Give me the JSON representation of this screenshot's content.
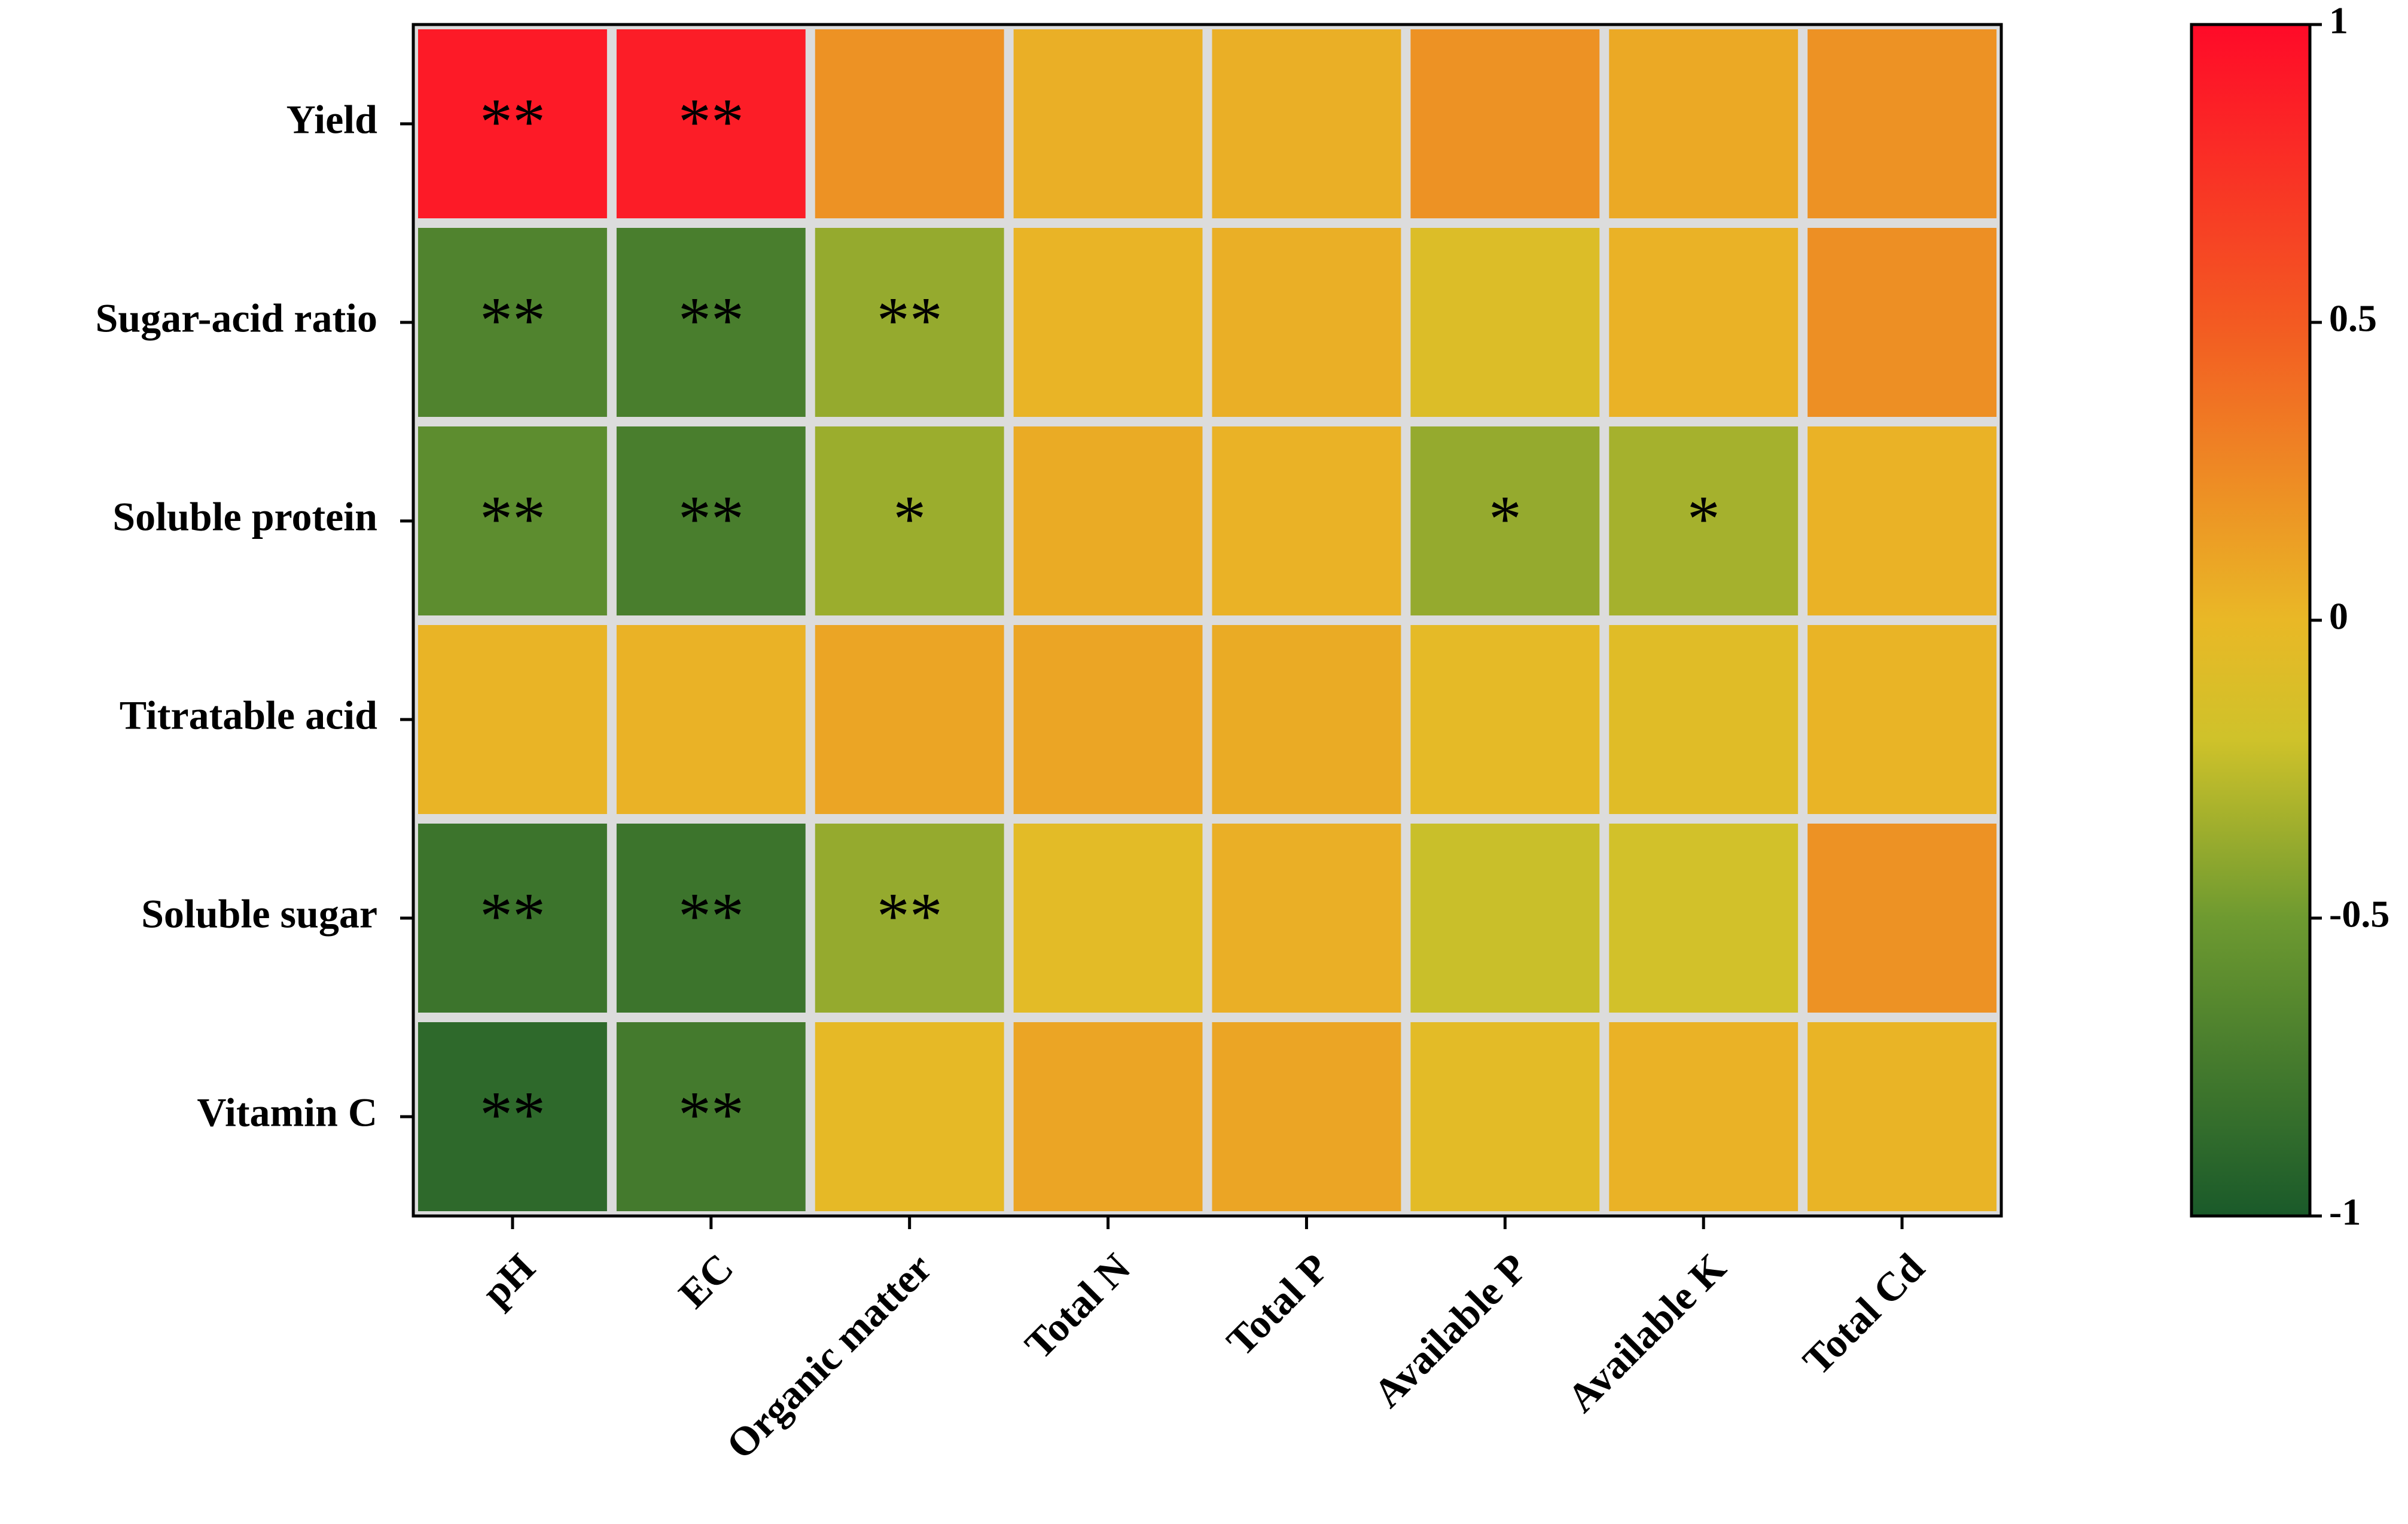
{
  "chart_data": {
    "type": "heatmap",
    "rows": [
      "Yield",
      "Sugar-acid ratio",
      "Soluble protein",
      "Titratable acid",
      "Soluble sugar",
      "Vitamin C"
    ],
    "columns": [
      "pH",
      "EC",
      "Organic matter",
      "Total N",
      "Total P",
      "Available P",
      "Available K",
      "Total Cd"
    ],
    "values": [
      [
        0.9,
        0.88,
        0.2,
        0.05,
        0.05,
        0.2,
        0.08,
        0.2
      ],
      [
        -0.68,
        -0.72,
        -0.38,
        0.02,
        0.05,
        -0.1,
        0.03,
        0.22
      ],
      [
        -0.6,
        -0.72,
        -0.36,
        0.07,
        0.03,
        -0.38,
        -0.33,
        0.03
      ],
      [
        0.02,
        0.03,
        0.1,
        0.1,
        0.07,
        -0.03,
        -0.07,
        0.02
      ],
      [
        -0.8,
        -0.8,
        -0.38,
        -0.05,
        0.05,
        -0.22,
        -0.18,
        0.2
      ],
      [
        -0.88,
        -0.75,
        -0.02,
        0.1,
        0.1,
        -0.05,
        0.03,
        0.02
      ]
    ],
    "annotations": [
      [
        "**",
        "**",
        null,
        null,
        null,
        null,
        null,
        null
      ],
      [
        "**",
        "**",
        "**",
        null,
        null,
        null,
        null,
        null
      ],
      [
        "**",
        "**",
        "*",
        null,
        null,
        "*",
        "*",
        null
      ],
      [
        null,
        null,
        null,
        null,
        null,
        null,
        null,
        null
      ],
      [
        "**",
        "**",
        "**",
        null,
        null,
        null,
        null,
        null
      ],
      [
        "**",
        "**",
        null,
        null,
        null,
        null,
        null,
        null
      ]
    ],
    "colorscale": [
      [
        -1,
        "#1a5a2a"
      ],
      [
        -0.5,
        "#6e9a30"
      ],
      [
        -0.2,
        "#cfc22a"
      ],
      [
        0,
        "#e9b826"
      ],
      [
        0.5,
        "#f35a22"
      ],
      [
        1,
        "#ff0a28"
      ]
    ],
    "clim": [
      -1,
      1
    ],
    "cticks": [
      -1,
      -0.5,
      0,
      0.5,
      1
    ]
  }
}
